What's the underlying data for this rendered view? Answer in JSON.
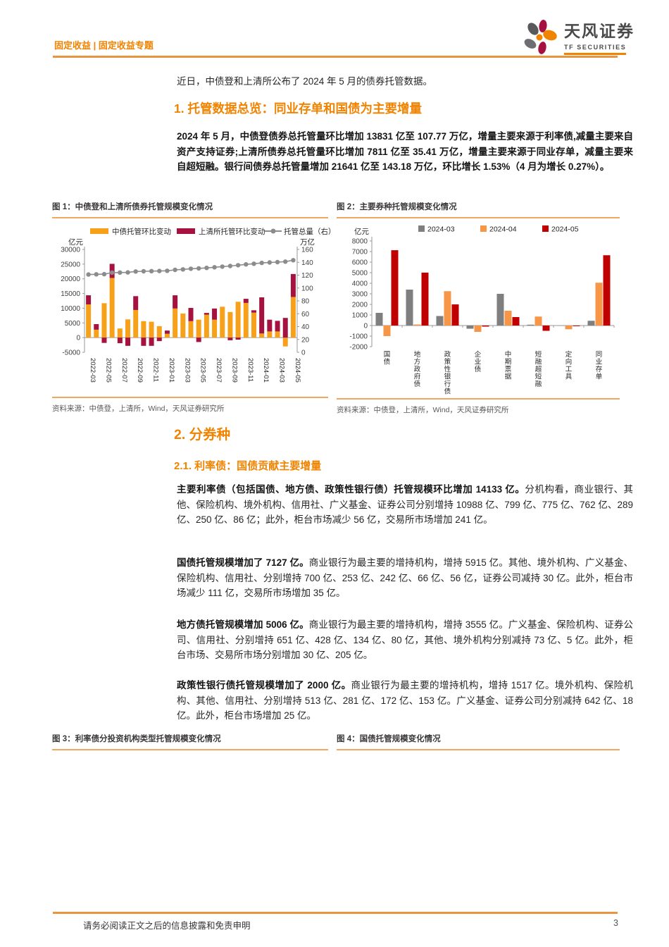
{
  "colors": {
    "accent": "#F08300",
    "rule": "#E9953F",
    "caption-rule": "#F0A860"
  },
  "header": {
    "breadcrumb": "固定收益 | 固定收益专题",
    "brand_name": "天风证券",
    "brand_sub": "TF SECURITIES"
  },
  "intro": "近日，中债登和上清所公布了 2024 年 5 月的债券托管数据。",
  "section1": {
    "title": "1. 托管数据总览：同业存单和国债为主要增量",
    "paragraph": "2024 年 5 月，中债登债券总托管量环比增加 13831 亿至 107.77 万亿，增量主要来源于利率债,减量主要来自资产支持证券;上清所债券总托管量环比增加 7811 亿至 35.41 万亿，增量主要来源于同业存单，减量主要来自超短融。银行间债券总托管量增加 21641 亿至 143.18 万亿，环比增长 1.53%（4 月为增长 0.27%）。"
  },
  "section2": {
    "title": "2. 分券种",
    "sub_title": "2.1. 利率债：国债贡献主要增量",
    "paragraphs": [
      {
        "bold": "主要利率债（包括国债、地方债、政策性银行债）托管规模环比增加 14133 亿。",
        "rest": "分机构看，商业银行、其他、保险机构、境外机构、信用社、广义基金、证券公司分别增持 10988 亿、799 亿、775 亿、762 亿、289 亿、250 亿、86 亿；此外，柜台市场减少 56 亿，交易所市场增加 241 亿。"
      },
      {
        "bold": "国债托管规模增加了 7127 亿。",
        "rest": "商业银行为最主要的增持机构，增持 5915 亿。其他、境外机构、广义基金、保险机构、信用社、分别增持 700 亿、253 亿、242 亿、66 亿、56 亿，证券公司减持 30 亿。此外，柜台市场减少 111 亿，交易所市场增加 35 亿。"
      },
      {
        "bold": "地方债托管规模增加 5006 亿。",
        "rest": "商业银行为最主要的增持机构，增持 3555 亿。广义基金、保险机构、证券公司、信用社、分别增持 651 亿、428 亿、134 亿、80 亿，其他、境外机构分别减持 73 亿、5 亿。此外，柜台市场、交易所市场分别增加 30 亿、205 亿。"
      },
      {
        "bold": "政策性银行债托管规模增加了 2000 亿。",
        "rest": "商业银行为最主要的增持机构，增持 1517 亿。境外机构、保险机构、其他、信用社、分别增持 513 亿、281 亿、172 亿、153 亿。广义基金、证券公司分别减持 642 亿、18 亿。此外，柜台市场增加 25 亿。"
      }
    ]
  },
  "figure1": {
    "caption": "图 1：中债登和上清所债券托管规模变化情况",
    "source": "资料来源：中债登，上清所，Wind，天风证券研究所"
  },
  "figure2": {
    "caption": "图 2：主要券种托管规模变化情况",
    "source": "资料来源：中债登，上清所，Wind，天风证券研究所"
  },
  "figure3": {
    "caption": "图 3：利率债分投资机构类型托管规模变化情况"
  },
  "figure4": {
    "caption": "图 4：国债托管规模变化情况"
  },
  "footer": {
    "disclaimer": "请务必阅读正文之后的信息披露和免责申明",
    "page_number": "3"
  },
  "chart_data": [
    {
      "type": "bar",
      "subtype": "stacked_bar_with_line",
      "title": "图 1：中债登和上清所债券托管规模变化情况",
      "left_axis_label": "亿元",
      "right_axis_label": "万亿",
      "left_ylim": [
        -5000,
        30000
      ],
      "right_ylim": [
        0,
        160
      ],
      "left_ticks": [
        -5000,
        0,
        5000,
        10000,
        15000,
        20000,
        25000,
        30000
      ],
      "right_ticks": [
        0,
        20,
        40,
        60,
        80,
        100,
        120,
        140,
        160
      ],
      "x": [
        "2022-03",
        "2022-04",
        "2022-05",
        "2022-06",
        "2022-07",
        "2022-08",
        "2022-09",
        "2022-10",
        "2022-11",
        "2022-12",
        "2023-01",
        "2023-02",
        "2023-03",
        "2023-04",
        "2023-05",
        "2023-06",
        "2023-07",
        "2023-08",
        "2023-09",
        "2023-10",
        "2023-11",
        "2023-12",
        "2024-01",
        "2024-02",
        "2024-03",
        "2024-04",
        "2024-05"
      ],
      "x_label_every": 2,
      "series": [
        {
          "name": "中债托管环比变动",
          "color": "#F7A11A",
          "axis": "left",
          "values": [
            11300,
            2700,
            11700,
            20300,
            3100,
            6200,
            9400,
            5600,
            5400,
            3900,
            1300,
            9900,
            8200,
            5600,
            6100,
            7800,
            6100,
            10500,
            8700,
            12200,
            11800,
            8500,
            1400,
            2100,
            2100,
            -3000,
            13831
          ]
        },
        {
          "name": "上清所托管环比变动",
          "color": "#A6123F",
          "axis": "left",
          "values": [
            3100,
            1900,
            -1800,
            4800,
            -1900,
            -2800,
            4700,
            -2800,
            -2800,
            -1200,
            1100,
            4500,
            0,
            4500,
            -1500,
            600,
            3800,
            0,
            -900,
            -700,
            1400,
            800,
            12300,
            4000,
            3600,
            6700,
            7811
          ]
        },
        {
          "name": "托管总量（右）",
          "color": "#8C8C8C",
          "axis": "right",
          "style": "line",
          "values": [
            121.0,
            121.3,
            121.5,
            123.9,
            124.0,
            124.3,
            125.7,
            126.0,
            126.2,
            126.5,
            126.8,
            128.2,
            129.0,
            130.0,
            130.5,
            131.3,
            132.3,
            133.3,
            134.2,
            135.5,
            136.8,
            137.8,
            139.1,
            139.7,
            140.3,
            141.0,
            143.2
          ]
        }
      ]
    },
    {
      "type": "bar",
      "subtype": "grouped_bar",
      "title": "图 2：主要券种托管规模变化情况",
      "ylabel": "亿元",
      "ylim": [
        -2000,
        8000
      ],
      "yticks": [
        -2000,
        -1000,
        0,
        1000,
        2000,
        3000,
        4000,
        5000,
        6000,
        7000,
        8000
      ],
      "categories": [
        "国债",
        "地方政府债",
        "政策性银行债",
        "企业债",
        "中期票据",
        "短融超短融",
        "定向工具",
        "同业存单"
      ],
      "series": [
        {
          "name": "2024-03",
          "color": "#7F7F7F",
          "values": [
            1200,
            3400,
            900,
            -300,
            3000,
            80,
            -20,
            450
          ]
        },
        {
          "name": "2024-04",
          "color": "#F79646",
          "values": [
            -1000,
            100,
            3250,
            -600,
            1400,
            850,
            -350,
            4050
          ]
        },
        {
          "name": "2024-05",
          "color": "#C00000",
          "values": [
            7127,
            5006,
            2000,
            -100,
            800,
            -500,
            -60,
            6650
          ]
        }
      ]
    }
  ]
}
